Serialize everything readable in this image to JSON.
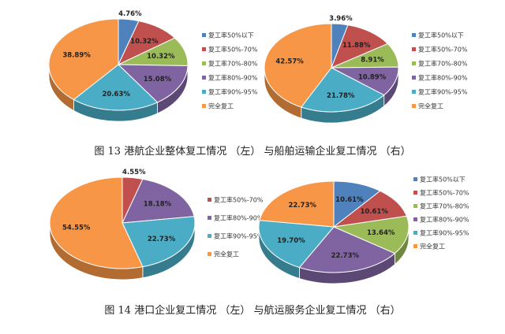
{
  "captions": {
    "fig13": "图 13  港航企业整体复工情况 （左） 与船舶运输企业复工情况 （右）",
    "fig14": "图 14  港口企业复工情况 （左） 与航运服务企业复工情况 （右）"
  },
  "chart_data": [
    {
      "type": "pie",
      "categories": [
        "复工率50%以下",
        "复工率50%-70%",
        "复工率70%-80%",
        "复工率80%-90%",
        "复工率90%-95%",
        "完全复工"
      ],
      "values": [
        4.76,
        10.32,
        10.32,
        15.08,
        20.63,
        38.89
      ],
      "labels": [
        "4.76%",
        "10.32%",
        "10.32%",
        "15.08%",
        "20.63%",
        "38.89%"
      ],
      "colors": [
        "#4f81bd",
        "#c0504d",
        "#9bbb59",
        "#8064a2",
        "#4bacc6",
        "#f79646"
      ],
      "legend": "right",
      "style": "3d"
    },
    {
      "type": "pie",
      "categories": [
        "复工率50%以下",
        "复工率50%-70%",
        "复工率70%-80%",
        "复工率80%-90%",
        "复工率90%-95%",
        "完全复工"
      ],
      "values": [
        3.96,
        11.88,
        8.91,
        10.89,
        21.78,
        42.57
      ],
      "labels": [
        "3.96%",
        "11.88%",
        "8.91%",
        "10.89%",
        "21.78%",
        "42.57%"
      ],
      "colors": [
        "#4f81bd",
        "#c0504d",
        "#9bbb59",
        "#8064a2",
        "#4bacc6",
        "#f79646"
      ],
      "legend": "right",
      "style": "3d"
    },
    {
      "type": "pie",
      "categories": [
        "复工率50%-70%",
        "复工率80%-90%",
        "复工率90%-95%",
        "完全复工"
      ],
      "values": [
        4.55,
        18.18,
        22.73,
        54.55
      ],
      "labels": [
        "4.55%",
        "18.18%",
        "22.73%",
        "54.55%"
      ],
      "colors": [
        "#c0504d",
        "#8064a2",
        "#4bacc6",
        "#f79646"
      ],
      "legend": "right",
      "style": "3d"
    },
    {
      "type": "pie",
      "categories": [
        "复工率50%以下",
        "复工率50%-70%",
        "复工率70%-80%",
        "复工率80%-90%",
        "复工率90%-95%",
        "完全复工"
      ],
      "values": [
        10.61,
        10.61,
        13.64,
        22.73,
        19.7,
        22.73
      ],
      "labels": [
        "10.61%",
        "10.61%",
        "13.64%",
        "22.73%",
        "19.70%",
        "22.73%"
      ],
      "colors": [
        "#4f81bd",
        "#c0504d",
        "#9bbb59",
        "#8064a2",
        "#4bacc6",
        "#f79646"
      ],
      "legend": "right",
      "style": "3d"
    }
  ]
}
